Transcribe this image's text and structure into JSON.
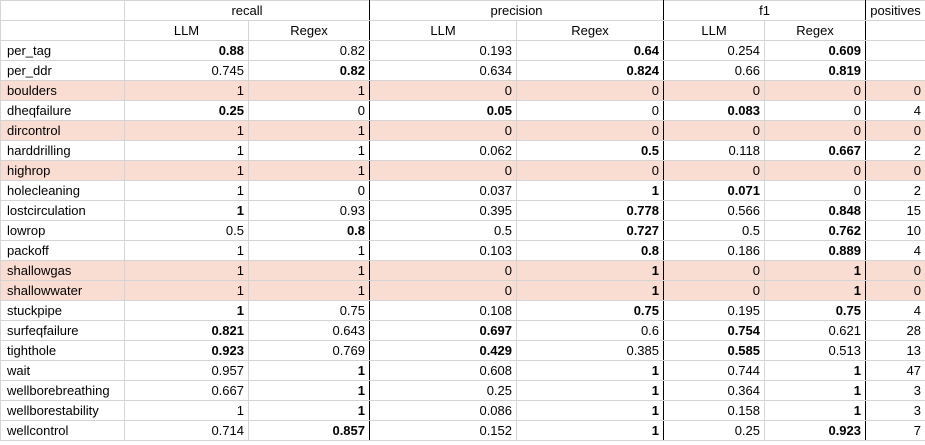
{
  "header": {
    "groups": [
      "recall",
      "precision",
      "f1"
    ],
    "sub": [
      "LLM",
      "Regex",
      "LLM",
      "Regex",
      "LLM",
      "Regex"
    ],
    "positives": "positives"
  },
  "rows": [
    {
      "name": "per_tag",
      "hl": false,
      "v": [
        "0.88",
        "0.82",
        "0.193",
        "0.64",
        "0.254",
        "0.609",
        ""
      ],
      "b": [
        1,
        0,
        0,
        1,
        0,
        1,
        0
      ]
    },
    {
      "name": "per_ddr",
      "hl": false,
      "v": [
        "0.745",
        "0.82",
        "0.634",
        "0.824",
        "0.66",
        "0.819",
        ""
      ],
      "b": [
        0,
        1,
        0,
        1,
        0,
        1,
        0
      ]
    },
    {
      "name": "boulders",
      "hl": true,
      "v": [
        "1",
        "1",
        "0",
        "0",
        "0",
        "0",
        "0"
      ],
      "b": [
        0,
        0,
        0,
        0,
        0,
        0,
        0
      ]
    },
    {
      "name": "dheqfailure",
      "hl": false,
      "v": [
        "0.25",
        "0",
        "0.05",
        "0",
        "0.083",
        "0",
        "4"
      ],
      "b": [
        1,
        0,
        1,
        0,
        1,
        0,
        0
      ]
    },
    {
      "name": "dircontrol",
      "hl": true,
      "v": [
        "1",
        "1",
        "0",
        "0",
        "0",
        "0",
        "0"
      ],
      "b": [
        0,
        0,
        0,
        0,
        0,
        0,
        0
      ]
    },
    {
      "name": "harddrilling",
      "hl": false,
      "v": [
        "1",
        "1",
        "0.062",
        "0.5",
        "0.118",
        "0.667",
        "2"
      ],
      "b": [
        0,
        0,
        0,
        1,
        0,
        1,
        0
      ]
    },
    {
      "name": "highrop",
      "hl": true,
      "v": [
        "1",
        "1",
        "0",
        "0",
        "0",
        "0",
        "0"
      ],
      "b": [
        0,
        0,
        0,
        0,
        0,
        0,
        0
      ]
    },
    {
      "name": "holecleaning",
      "hl": false,
      "v": [
        "1",
        "0",
        "0.037",
        "1",
        "0.071",
        "0",
        "2"
      ],
      "b": [
        0,
        0,
        0,
        1,
        1,
        0,
        0
      ]
    },
    {
      "name": "lostcirculation",
      "hl": false,
      "v": [
        "1",
        "0.93",
        "0.395",
        "0.778",
        "0.566",
        "0.848",
        "15"
      ],
      "b": [
        1,
        0,
        0,
        1,
        0,
        1,
        0
      ]
    },
    {
      "name": "lowrop",
      "hl": false,
      "v": [
        "0.5",
        "0.8",
        "0.5",
        "0.727",
        "0.5",
        "0.762",
        "10"
      ],
      "b": [
        0,
        1,
        0,
        1,
        0,
        1,
        0
      ]
    },
    {
      "name": "packoff",
      "hl": false,
      "v": [
        "1",
        "1",
        "0.103",
        "0.8",
        "0.186",
        "0.889",
        "4"
      ],
      "b": [
        0,
        0,
        0,
        1,
        0,
        1,
        0
      ]
    },
    {
      "name": "shallowgas",
      "hl": true,
      "v": [
        "1",
        "1",
        "0",
        "1",
        "0",
        "1",
        "0"
      ],
      "b": [
        0,
        0,
        0,
        1,
        0,
        1,
        0
      ]
    },
    {
      "name": "shallowwater",
      "hl": true,
      "v": [
        "1",
        "1",
        "0",
        "1",
        "0",
        "1",
        "0"
      ],
      "b": [
        0,
        0,
        0,
        1,
        0,
        1,
        0
      ]
    },
    {
      "name": "stuckpipe",
      "hl": false,
      "v": [
        "1",
        "0.75",
        "0.108",
        "0.75",
        "0.195",
        "0.75",
        "4"
      ],
      "b": [
        1,
        0,
        0,
        1,
        0,
        1,
        0
      ]
    },
    {
      "name": "surfeqfailure",
      "hl": false,
      "v": [
        "0.821",
        "0.643",
        "0.697",
        "0.6",
        "0.754",
        "0.621",
        "28"
      ],
      "b": [
        1,
        0,
        1,
        0,
        1,
        0,
        0
      ]
    },
    {
      "name": "tighthole",
      "hl": false,
      "v": [
        "0.923",
        "0.769",
        "0.429",
        "0.385",
        "0.585",
        "0.513",
        "13"
      ],
      "b": [
        1,
        0,
        1,
        0,
        1,
        0,
        0
      ]
    },
    {
      "name": "wait",
      "hl": false,
      "v": [
        "0.957",
        "1",
        "0.608",
        "1",
        "0.744",
        "1",
        "47"
      ],
      "b": [
        0,
        1,
        0,
        1,
        0,
        1,
        0
      ]
    },
    {
      "name": "wellborebreathing",
      "hl": false,
      "v": [
        "0.667",
        "1",
        "0.25",
        "1",
        "0.364",
        "1",
        "3"
      ],
      "b": [
        0,
        1,
        0,
        1,
        0,
        1,
        0
      ]
    },
    {
      "name": "wellborestability",
      "hl": false,
      "v": [
        "1",
        "1",
        "0.086",
        "1",
        "0.158",
        "1",
        "3"
      ],
      "b": [
        0,
        1,
        0,
        1,
        0,
        1,
        0
      ]
    },
    {
      "name": "wellcontrol",
      "hl": false,
      "v": [
        "0.714",
        "0.857",
        "0.152",
        "1",
        "0.25",
        "0.923",
        "7"
      ],
      "b": [
        0,
        1,
        0,
        1,
        0,
        1,
        0
      ]
    }
  ]
}
